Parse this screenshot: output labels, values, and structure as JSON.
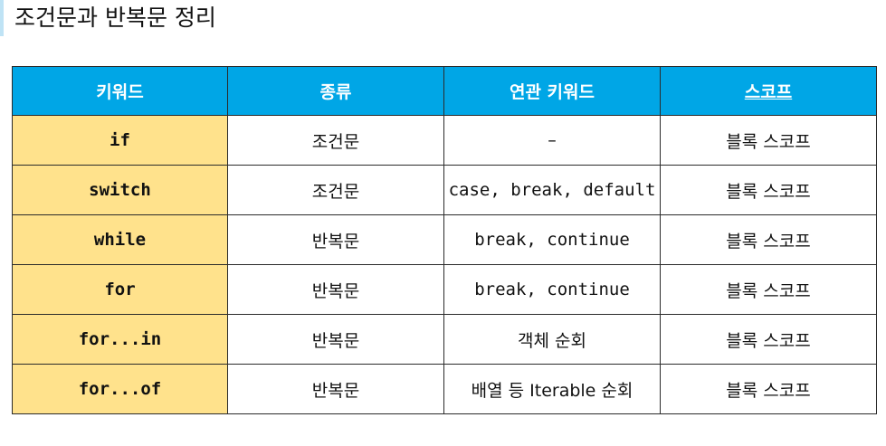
{
  "page": {
    "title": "조건문과 반복문 정리",
    "accent_color": "#bfe3f5"
  },
  "table": {
    "header_color": "#00a6e6",
    "keyword_cell_color": "#ffe28c",
    "headers": {
      "keyword": "키워드",
      "kind": "종류",
      "related": "연관 키워드",
      "scope": "스코프"
    },
    "rows": [
      {
        "keyword": "if",
        "kind": "조건문",
        "related": "–",
        "scope": "블록 스코프"
      },
      {
        "keyword": "switch",
        "kind": "조건문",
        "related": "case, break, default",
        "scope": "블록 스코프"
      },
      {
        "keyword": "while",
        "kind": "반복문",
        "related": "break, continue",
        "scope": "블록 스코프"
      },
      {
        "keyword": "for",
        "kind": "반복문",
        "related": "break, continue",
        "scope": "블록 스코프"
      },
      {
        "keyword": "for...in",
        "kind": "반복문",
        "related": "객체 순회",
        "scope": "블록 스코프"
      },
      {
        "keyword": "for...of",
        "kind": "반복문",
        "related": "배열 등 Iterable 순회",
        "scope": "블록 스코프"
      }
    ]
  }
}
